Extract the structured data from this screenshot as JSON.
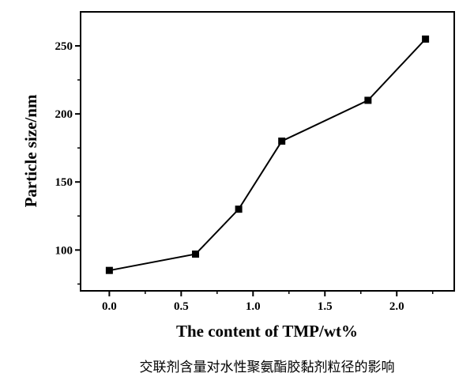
{
  "chart_data": {
    "type": "line",
    "title": "",
    "xlabel": "The content of TMP/wt%",
    "ylabel": "Particle size/nm",
    "caption": "交联剂含量对水性聚氨酯胶黏剂粒径的影响",
    "x": [
      0.0,
      0.6,
      0.9,
      1.2,
      1.8,
      2.2
    ],
    "series": [
      {
        "values": [
          85,
          97,
          130,
          180,
          210,
          255
        ]
      }
    ],
    "xlim": [
      -0.2,
      2.4
    ],
    "ylim": [
      70,
      275
    ],
    "xticks": [
      "0.0",
      "0.5",
      "1.0",
      "1.5",
      "2.0"
    ],
    "yticks": [
      "100",
      "150",
      "200",
      "250"
    ],
    "marker": "square",
    "line_color": "#000000",
    "grid": false,
    "legend": "none"
  }
}
